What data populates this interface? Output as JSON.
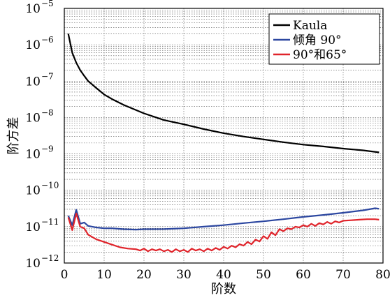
{
  "chart_data": {
    "type": "line",
    "xlabel": "阶数",
    "ylabel": "阶方差",
    "xlim": [
      0,
      80
    ],
    "ylim": [
      1e-12,
      1e-05
    ],
    "yscale": "log",
    "grid": true,
    "legend_position": "top-right",
    "x_ticks": [
      "0",
      "10",
      "20",
      "30",
      "40",
      "50",
      "60",
      "70",
      "80"
    ],
    "y_ticks": [
      {
        "base": "10",
        "exp": "−12"
      },
      {
        "base": "10",
        "exp": "−11"
      },
      {
        "base": "10",
        "exp": "−10"
      },
      {
        "base": "10",
        "exp": "−9"
      },
      {
        "base": "10",
        "exp": "−8"
      },
      {
        "base": "10",
        "exp": "−7"
      },
      {
        "base": "10",
        "exp": "−6"
      },
      {
        "base": "10",
        "exp": "−5"
      }
    ],
    "series": [
      {
        "name": "Kaula",
        "color": "#000000",
        "x": [
          1,
          2,
          3,
          4,
          5,
          6,
          8,
          10,
          12,
          15,
          20,
          25,
          30,
          35,
          40,
          45,
          50,
          55,
          60,
          65,
          70,
          75,
          79
        ],
        "y": [
          2e-06,
          6e-07,
          3.2e-07,
          2e-07,
          1.4e-07,
          1e-07,
          6.5e-08,
          4.3e-08,
          3.2e-08,
          2.2e-08,
          1.3e-08,
          8.5e-09,
          6.5e-09,
          4.8e-09,
          3.7e-09,
          3e-09,
          2.5e-09,
          2.1e-09,
          1.8e-09,
          1.6e-09,
          1.4e-09,
          1.25e-09,
          1.1e-09
        ]
      },
      {
        "name": "倾角 90°",
        "color": "#2c47a0",
        "x": [
          1,
          2,
          3,
          4,
          5,
          6,
          7,
          8,
          10,
          12,
          15,
          18,
          20,
          25,
          30,
          35,
          40,
          45,
          50,
          55,
          60,
          65,
          70,
          75,
          78,
          79
        ],
        "y": [
          2e-11,
          1.1e-11,
          2.9e-11,
          1.2e-11,
          1.3e-11,
          1.05e-11,
          1e-11,
          9.5e-12,
          9e-12,
          9e-12,
          8.5e-12,
          8.3e-12,
          8.5e-12,
          8.6e-12,
          9e-12,
          1e-11,
          1.1e-11,
          1.25e-11,
          1.4e-11,
          1.6e-11,
          1.85e-11,
          2.1e-11,
          2.4e-11,
          2.8e-11,
          3.2e-11,
          3.1e-11
        ]
      },
      {
        "name": "90°和65°",
        "color": "#e0242b",
        "x": [
          1,
          2,
          3,
          4,
          5,
          6,
          8,
          10,
          12,
          14,
          16,
          18,
          19,
          20,
          21,
          22,
          23,
          24,
          25,
          26,
          27,
          28,
          29,
          30,
          31,
          32,
          33,
          34,
          35,
          36,
          37,
          38,
          39,
          40,
          41,
          42,
          43,
          44,
          45,
          46,
          47,
          48,
          49,
          50,
          51,
          52,
          53,
          54,
          55,
          56,
          57,
          58,
          59,
          60,
          61,
          62,
          63,
          64,
          65,
          66,
          67,
          68,
          69,
          70,
          72,
          74,
          76,
          78,
          79
        ],
        "y": [
          1.8e-11,
          8e-12,
          2.3e-11,
          1e-11,
          9e-12,
          6e-12,
          4.5e-12,
          3.8e-12,
          3.2e-12,
          2.7e-12,
          2.5e-12,
          2.4e-12,
          2.2e-12,
          2.5e-12,
          2.1e-12,
          2.4e-12,
          2.2e-12,
          2.4e-12,
          2.1e-12,
          2.3e-12,
          2e-12,
          2.4e-12,
          2.1e-12,
          2.3e-12,
          2e-12,
          2.5e-12,
          2.2e-12,
          2.4e-12,
          2.1e-12,
          2.5e-12,
          2.2e-12,
          2.6e-12,
          2.3e-12,
          2.8e-12,
          2.5e-12,
          3e-12,
          2.7e-12,
          3.3e-12,
          3e-12,
          3.8e-12,
          3.3e-12,
          4.4e-12,
          3.9e-12,
          5.5e-12,
          4.6e-12,
          7e-12,
          5.8e-12,
          8.5e-12,
          7.5e-12,
          9e-12,
          8.5e-12,
          1e-11,
          9.5e-12,
          1.1e-11,
          1e-11,
          1.2e-11,
          1.05e-11,
          1.25e-11,
          1.15e-11,
          1.35e-11,
          1.2e-11,
          1.4e-11,
          1.3e-11,
          1.45e-11,
          1.5e-11,
          1.55e-11,
          1.6e-11,
          1.6e-11,
          1.55e-11
        ]
      }
    ]
  }
}
